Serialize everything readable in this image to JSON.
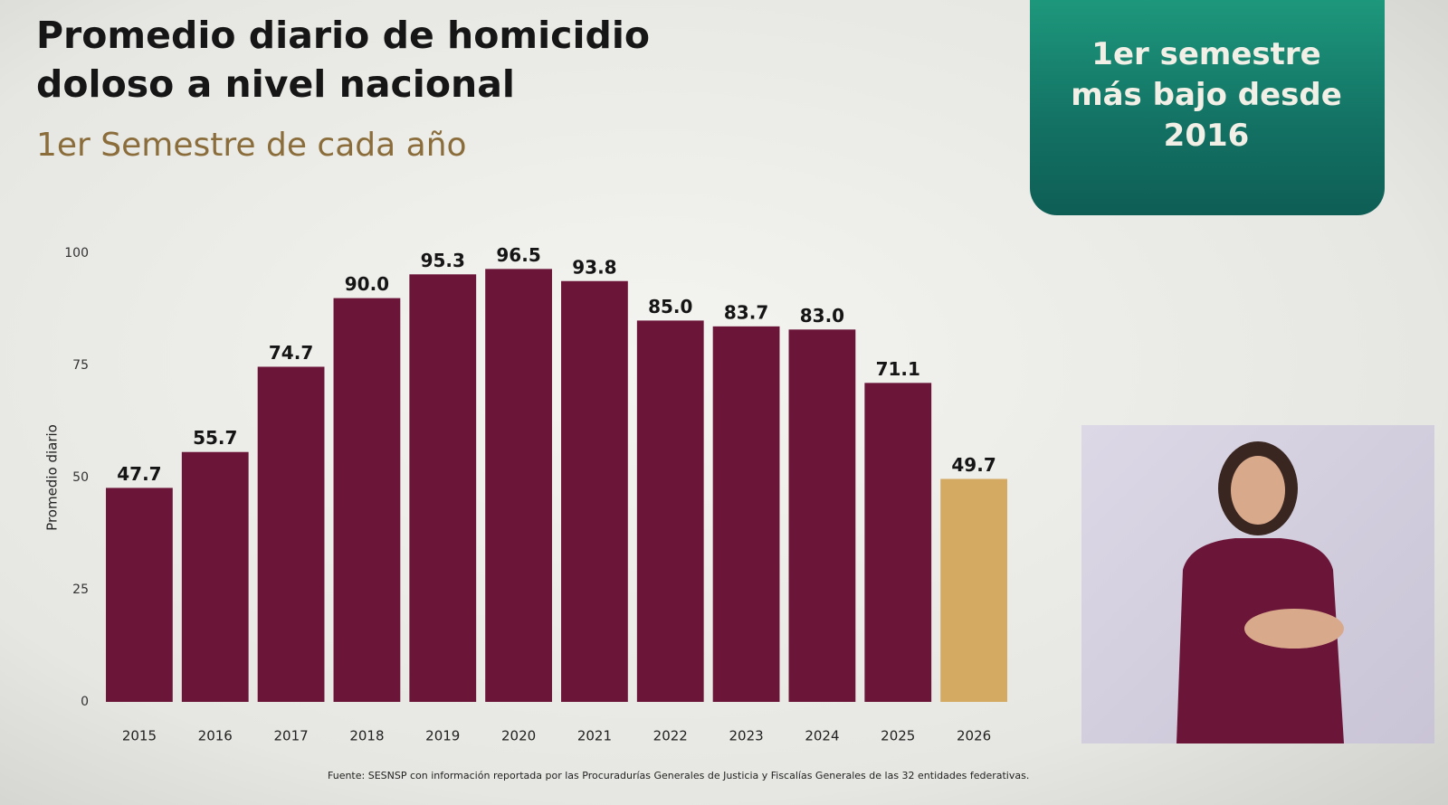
{
  "chart_data": {
    "type": "bar",
    "title": "Promedio diario de homicidio doloso a nivel nacional",
    "subtitle": "1er Semestre de cada año",
    "annotation": "1er semestre más bajo desde 2016",
    "source": "Fuente: SESNSP con información reportada por las Procuradurías Generales de Justicia y Fiscalías Generales de las 32 entidades federativas.",
    "ylabel": "Promedio diario",
    "categories": [
      "2015",
      "2016",
      "2017",
      "2018",
      "2019",
      "2020",
      "2021",
      "2022",
      "2023",
      "2024",
      "2025",
      "2026"
    ],
    "values": [
      47.7,
      55.7,
      74.7,
      90.0,
      95.3,
      96.5,
      93.8,
      85.0,
      83.7,
      83.0,
      71.1,
      49.7
    ],
    "value_labels": [
      "47.7",
      "55.7",
      "74.7",
      "90.0",
      "95.3",
      "96.5",
      "93.8",
      "85.0",
      "83.7",
      "83.0",
      "71.1",
      "49.7"
    ],
    "colors": [
      "#6b1538",
      "#6b1538",
      "#6b1538",
      "#6b1538",
      "#6b1538",
      "#6b1538",
      "#6b1538",
      "#6b1538",
      "#6b1538",
      "#6b1538",
      "#6b1538",
      "#d4a962"
    ],
    "ylim": [
      0,
      100
    ],
    "yticks": [
      0,
      25,
      50,
      75,
      100
    ],
    "grid": false
  }
}
